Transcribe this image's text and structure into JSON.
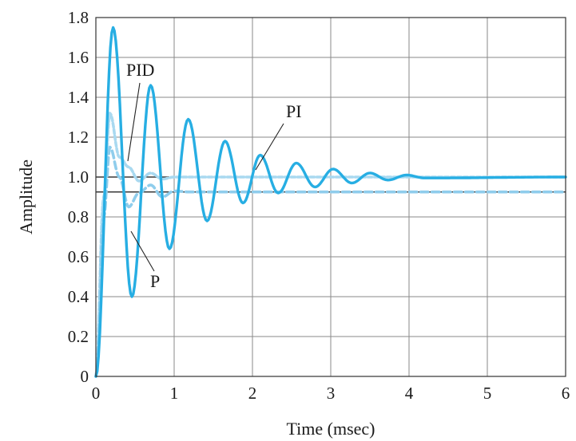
{
  "chart_data": {
    "type": "line",
    "title": "",
    "xlabel": "Time (msec)",
    "ylabel": "Amplitude",
    "xlim": [
      0,
      6
    ],
    "ylim": [
      0,
      1.8
    ],
    "x_ticks": [
      "0",
      "1",
      "2",
      "3",
      "4",
      "5",
      "6"
    ],
    "y_ticks": [
      "0",
      "0.2",
      "0.4",
      "0.6",
      "0.8",
      "1.0",
      "1.2",
      "1.4",
      "1.6",
      "1.8"
    ],
    "grid": true,
    "reference_lines": [
      1.0,
      0.925
    ],
    "annotations": [
      "PID",
      "PI",
      "P"
    ],
    "colors": {
      "pi": "#27aee3",
      "pid": "#a9d9f0",
      "p": "#8fcdec",
      "grid": "#8a8a8a"
    },
    "series": [
      {
        "name": "PI",
        "x": [
          0,
          0.22,
          0.46,
          0.7,
          0.94,
          1.18,
          1.42,
          1.65,
          1.88,
          2.1,
          2.33,
          2.56,
          2.8,
          3.03,
          3.27,
          3.5,
          3.73,
          3.97,
          4.2,
          6
        ],
        "y": [
          0,
          1.75,
          0.4,
          1.46,
          0.64,
          1.29,
          0.78,
          1.18,
          0.87,
          1.11,
          0.92,
          1.07,
          0.95,
          1.04,
          0.97,
          1.02,
          0.985,
          1.01,
          0.995,
          1.0
        ]
      },
      {
        "name": "PID",
        "x": [
          0,
          0.1,
          0.18,
          0.3,
          0.42,
          0.55,
          0.7,
          0.85,
          1.0,
          6
        ],
        "y": [
          0,
          0.9,
          1.32,
          1.1,
          1.05,
          0.98,
          1.02,
          0.99,
          1.0,
          1.0
        ]
      },
      {
        "name": "P",
        "x": [
          0,
          0.1,
          0.18,
          0.3,
          0.42,
          0.55,
          0.7,
          0.85,
          1.0,
          1.2,
          6
        ],
        "y": [
          0,
          0.8,
          1.15,
          1.0,
          0.85,
          0.92,
          0.96,
          0.9,
          0.93,
          0.925,
          0.925
        ]
      }
    ]
  }
}
